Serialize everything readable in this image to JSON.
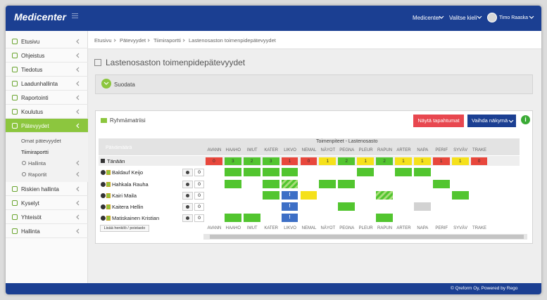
{
  "topbar": {
    "logo": "Medicenter",
    "org": "Medicenter",
    "language": "Valitse kieli",
    "user": "Timo Raaska"
  },
  "sidebar": {
    "items": [
      {
        "label": "Etusivu"
      },
      {
        "label": "Ohjeistus"
      },
      {
        "label": "Tiedotus"
      },
      {
        "label": "Laadunhallinta"
      },
      {
        "label": "Raportointi"
      },
      {
        "label": "Koulutus"
      },
      {
        "label": "Pätevyydet",
        "active": true,
        "children": [
          "Omat pätevyydet",
          "Tiimiraportti",
          "Hallinta",
          "Raportit"
        ]
      },
      {
        "label": "Riskien hallinta"
      },
      {
        "label": "Kyselyt"
      },
      {
        "label": "Yhteisöt"
      },
      {
        "label": "Hallinta"
      }
    ]
  },
  "breadcrumb": [
    "Etusivu",
    "Pätevyydet",
    "Tiimiraportti",
    "Lastenosaston toimenpidepätevyydet"
  ],
  "page_title": "Lastenosaston toimenpidepätevyydet",
  "filter_panel": {
    "title": "Suodata"
  },
  "matrix_panel": {
    "title": "Ryhmämatriisi",
    "buttons": [
      "Näytä tapahtumat",
      "Vaihda näkymä"
    ]
  },
  "matrix": {
    "date_label": "Päivämäärä",
    "group_title": "Toimenpiteet - Lastenosasto",
    "columns": [
      "AVANN",
      "HAAHO",
      "IMUT",
      "KATER",
      "LIKVO",
      "NEMAL",
      "NÄYOT",
      "PEGNA",
      "PLEUR",
      "RAPUN",
      "ARTER",
      "NAPA",
      "PERIF",
      "SYVÄV",
      "TRAKE"
    ],
    "today": {
      "label": "Tänään",
      "values": [
        0,
        3,
        2,
        3,
        1,
        0,
        1,
        2,
        1,
        2,
        1,
        1,
        1,
        1,
        0
      ],
      "statuses": [
        "r",
        "g",
        "g",
        "g",
        "r",
        "r",
        "y",
        "g",
        "y",
        "g",
        "y",
        "y",
        "r",
        "y",
        "r"
      ]
    },
    "status_colors": {
      "r": "#e8473c",
      "g": "#52c52f",
      "y": "#f5e11b",
      "b": "#3d6fc6",
      "x": "#d2d2d2",
      "s": "#a8dd7a"
    },
    "pending_mark": "!",
    "rows": [
      {
        "name": "Baldauf Keijo",
        "count": 0,
        "cells": [
          null,
          "g",
          "g",
          "g",
          "g",
          null,
          null,
          null,
          "g",
          null,
          "g",
          "g",
          null,
          null,
          null
        ]
      },
      {
        "name": "Hahkala Rauha",
        "count": 0,
        "cells": [
          null,
          "g",
          null,
          "g",
          "s",
          null,
          "g",
          "g",
          null,
          null,
          null,
          null,
          "g",
          null,
          null
        ]
      },
      {
        "name": "Kairi Maila",
        "count": 0,
        "cells": [
          null,
          null,
          null,
          "g",
          "b",
          "y",
          null,
          null,
          null,
          "s",
          null,
          null,
          null,
          "g",
          null
        ]
      },
      {
        "name": "Kaitera Hellin",
        "count": 0,
        "cells": [
          null,
          null,
          null,
          null,
          "b",
          null,
          null,
          "g",
          null,
          null,
          null,
          "x",
          null,
          null,
          null
        ]
      },
      {
        "name": "Matiskainen Kristian",
        "count": 0,
        "cells": [
          null,
          "g",
          "g",
          null,
          "b",
          null,
          null,
          null,
          null,
          "g",
          null,
          null,
          null,
          null,
          null
        ]
      }
    ],
    "add_button": "Lisää henkilö / poistaolo"
  },
  "footer": "© Qreform Oy, Powered by Rego"
}
